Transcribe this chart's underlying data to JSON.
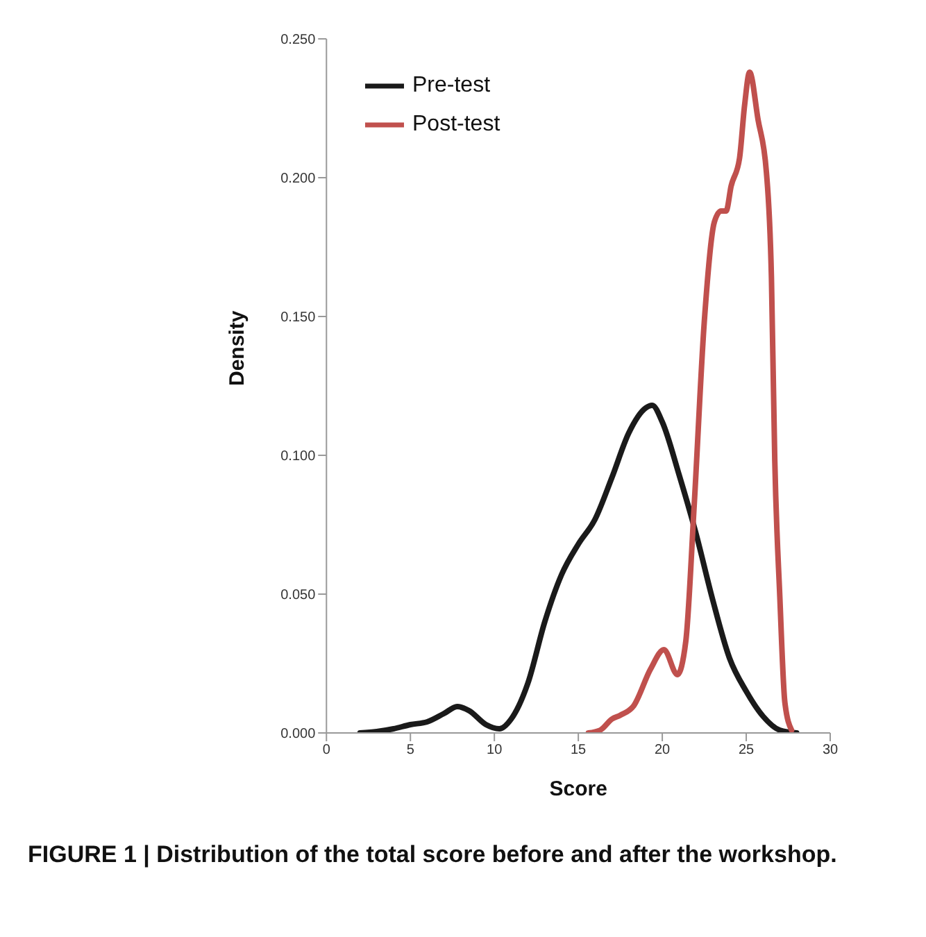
{
  "chart_data": {
    "type": "line",
    "xlabel": "Score",
    "ylabel": "Density",
    "annotations": [
      "FIGURE 1 | Distribution of the total score before and after the workshop."
    ],
    "xlim": [
      0,
      30
    ],
    "xticks": [
      0,
      5,
      10,
      15,
      20,
      25,
      30
    ],
    "ylim": [
      0,
      0.25
    ],
    "yticks": [
      {
        "value": 0,
        "label": "0.000"
      },
      {
        "value": 0.05,
        "label": "0.050"
      },
      {
        "value": 0.1,
        "label": "0.100"
      },
      {
        "value": 0.15,
        "label": "0.150"
      },
      {
        "value": 0.2,
        "label": "0.200"
      },
      {
        "value": 0.25,
        "label": "0.250"
      }
    ],
    "grid": false,
    "legend": "top left",
    "marker": "none",
    "line_style": "solid",
    "series": [
      {
        "name": "Pre-test",
        "color": "#1a1a1a",
        "x": [
          2,
          3,
          4,
          5,
          6,
          7,
          7.8,
          8.5,
          9.5,
          10.3,
          11,
          12,
          13,
          14,
          15,
          16,
          17,
          18,
          19,
          19.4,
          20,
          21,
          22,
          23,
          24,
          25,
          26,
          27,
          28
        ],
        "values": [
          0,
          0.0005,
          0.0015,
          0.003,
          0.004,
          0.007,
          0.0095,
          0.008,
          0.003,
          0.0015,
          0.005,
          0.018,
          0.04,
          0.057,
          0.068,
          0.077,
          0.092,
          0.108,
          0.117,
          0.118,
          0.112,
          0.093,
          0.072,
          0.048,
          0.027,
          0.015,
          0.006,
          0.001,
          0
        ]
      },
      {
        "name": "Post-test",
        "color": "#c0504d",
        "x": [
          15.6,
          16.3,
          17,
          17.5,
          18.3,
          19.3,
          20.1,
          20.9,
          21.4,
          21.9,
          22.5,
          23.1,
          23.5,
          23.8,
          24.1,
          24.6,
          24.9,
          25.2,
          25.7,
          26.2,
          26.5,
          26.7,
          27,
          27.3,
          27.7
        ],
        "values": [
          0,
          0.001,
          0.005,
          0.0064,
          0.0098,
          0.023,
          0.03,
          0.021,
          0.033,
          0.082,
          0.148,
          0.184,
          0.188,
          0.188,
          0.197,
          0.207,
          0.226,
          0.238,
          0.221,
          0.202,
          0.164,
          0.098,
          0.049,
          0.011,
          0.001
        ]
      }
    ]
  }
}
